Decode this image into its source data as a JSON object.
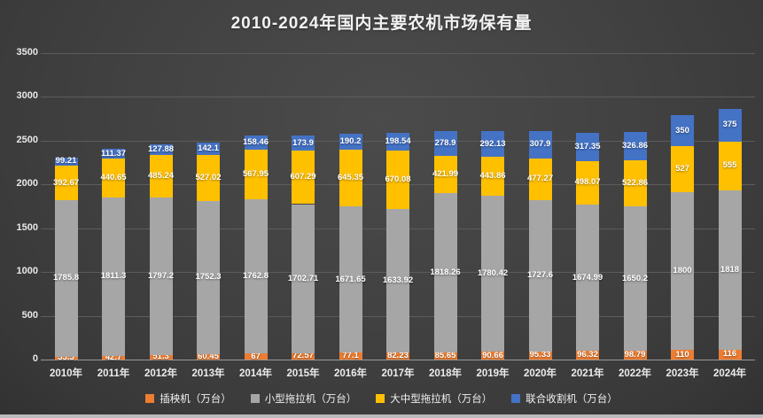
{
  "chart_data": {
    "type": "bar",
    "stacked": true,
    "title": "2010-2024年国内主要农机市场保有量",
    "unit_note": "万台",
    "categories": [
      "2010年",
      "2011年",
      "2012年",
      "2013年",
      "2014年",
      "2015年",
      "2016年",
      "2017年",
      "2018年",
      "2019年",
      "2020年",
      "2021年",
      "2022年",
      "2023年",
      "2024年"
    ],
    "series": [
      {
        "name": "插秧机（万台）",
        "color": "#ED7D31",
        "values": [
          33.3,
          42.7,
          51.3,
          60.45,
          67,
          72.57,
          77.1,
          82.23,
          85.65,
          90.66,
          95.33,
          96.32,
          98.79,
          110,
          116
        ],
        "labels": [
          "33.3",
          "42.7",
          "51.3",
          "60.45",
          "67",
          "72.57",
          "77.1",
          "82.23",
          "85.65",
          "90.66",
          "95.33",
          "96.32",
          "98.79",
          "110",
          "116"
        ]
      },
      {
        "name": "小型拖拉机（万台）",
        "color": "#A6A6A6",
        "values": [
          1785.8,
          1811.3,
          1797.2,
          1752.3,
          1762.8,
          1702.71,
          1671.65,
          1633.92,
          1818.26,
          1780.42,
          1727.6,
          1674.99,
          1650.2,
          1800,
          1818
        ],
        "labels": [
          "1785.8",
          "1811.3",
          "1797.2",
          "1752.3",
          "1762.8",
          "1702.71",
          "1671.65",
          "1633.92",
          "1818.26",
          "1780.42",
          "1727.6",
          "1674.99",
          "1650.2",
          "1800",
          "1818"
        ]
      },
      {
        "name": "大中型拖拉机（万台）",
        "color": "#FFC000",
        "values": [
          392.67,
          440.65,
          485.24,
          527.02,
          567.95,
          607.29,
          645.35,
          670.08,
          421.99,
          443.86,
          477.27,
          498.07,
          522.86,
          527,
          555
        ],
        "labels": [
          "392.67",
          "440.65",
          "485.24",
          "527.02",
          "567.95",
          "607.29",
          "645.35",
          "670.08",
          "421.99",
          "443.86",
          "477.27",
          "498.07",
          "522.86",
          "527",
          "555"
        ]
      },
      {
        "name": "联合收割机（万台）",
        "color": "#4472C4",
        "values": [
          99.21,
          111.37,
          127.88,
          142.1,
          158.46,
          173.9,
          190.2,
          198.54,
          278.9,
          292.13,
          307.9,
          317.35,
          326.86,
          350,
          375
        ],
        "labels": [
          "99.21",
          "111.37",
          "127.88",
          "142.1",
          "158.46",
          "173.9",
          "190.2",
          "198.54",
          "278.9",
          "292.13",
          "307.9",
          "317.35",
          "326.86",
          "350",
          "375"
        ]
      }
    ],
    "ylim": [
      0,
      3500
    ],
    "yticks": [
      "0",
      "500",
      "1000",
      "1500",
      "2000",
      "2500",
      "3000",
      "3500"
    ],
    "grid": true,
    "legend_position": "bottom",
    "colors": {
      "background": "#424242",
      "gridline": "#5c5c5c",
      "axis_line": "#9a9a9a",
      "text": "#f2f2f2"
    }
  }
}
